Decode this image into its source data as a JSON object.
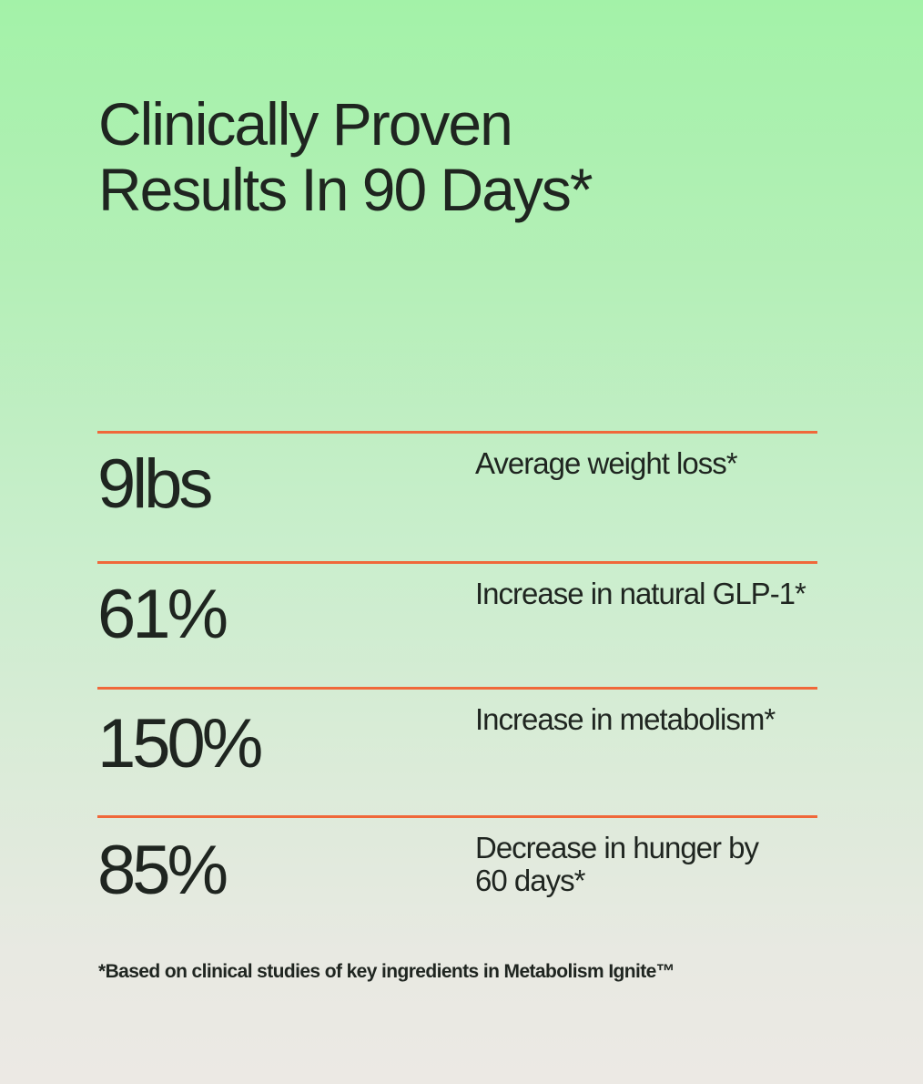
{
  "heading": {
    "line1": "Clinically Proven",
    "line2": "Results In 90 Days*"
  },
  "stats": [
    {
      "value": "9lbs",
      "label": "Average weight loss*"
    },
    {
      "value": "61%",
      "label": "Increase in natural GLP-1*"
    },
    {
      "value": "150%",
      "label": "Increase in metabolism*"
    },
    {
      "value": "85%",
      "label_line1": "Decrease in hunger by",
      "label_line2": "60 days*"
    }
  ],
  "footnote": "*Based on clinical studies of key ingredients in Metabolism Ignite™",
  "colors": {
    "divider": "#f0683a",
    "text": "#1f2520",
    "gradient_top": "#a3f2a8",
    "gradient_bottom": "#ece9e4"
  }
}
